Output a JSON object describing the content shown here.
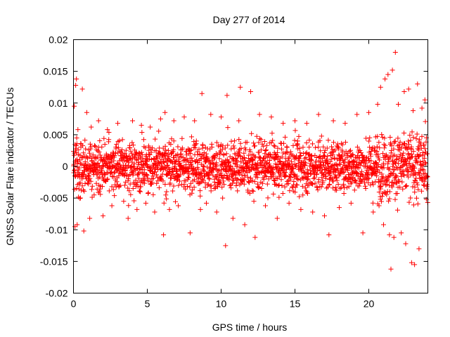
{
  "chart_data": {
    "type": "scatter",
    "title": "Day 277 of 2014",
    "xlabel": "GPS time / hours",
    "ylabel": "GNSS Solar Flare indicator / TECUs",
    "xlim": [
      0,
      24
    ],
    "ylim": [
      -0.02,
      0.02
    ],
    "x_ticks": [
      {
        "value": 0,
        "label": "0"
      },
      {
        "value": 5,
        "label": "5"
      },
      {
        "value": 10,
        "label": "10"
      },
      {
        "value": 15,
        "label": "15"
      },
      {
        "value": 20,
        "label": "20"
      }
    ],
    "y_ticks": [
      {
        "value": -0.02,
        "label": "-0.02"
      },
      {
        "value": -0.015,
        "label": "-0.015"
      },
      {
        "value": -0.01,
        "label": "-0.01"
      },
      {
        "value": -0.005,
        "label": "-0.005"
      },
      {
        "value": 0,
        "label": "0"
      },
      {
        "value": 0.005,
        "label": "0.005"
      },
      {
        "value": 0.01,
        "label": "0.01"
      },
      {
        "value": 0.015,
        "label": "0.015"
      },
      {
        "value": 0.02,
        "label": "0.02"
      }
    ],
    "marker": "plus",
    "color": "#ff0000",
    "grid": false,
    "series": [
      {
        "points": [
          [
            0.05,
            0.0095
          ],
          [
            0.1,
            -0.0095
          ],
          [
            0.15,
            0.0128
          ],
          [
            0.2,
            0.0138
          ],
          [
            0.25,
            -0.0092
          ],
          [
            0.3,
            0.0058
          ],
          [
            0.6,
            0.0122
          ],
          [
            0.7,
            -0.0102
          ],
          [
            0.9,
            0.0085
          ],
          [
            1.1,
            -0.0082
          ],
          [
            1.2,
            0.0062
          ],
          [
            1.4,
            -0.0045
          ],
          [
            1.7,
            0.0072
          ],
          [
            2.0,
            -0.0078
          ],
          [
            2.3,
            0.0058
          ],
          [
            2.6,
            -0.0062
          ],
          [
            3.0,
            0.0068
          ],
          [
            3.4,
            -0.0055
          ],
          [
            3.7,
            -0.0082
          ],
          [
            4.0,
            0.0072
          ],
          [
            4.3,
            -0.0068
          ],
          [
            4.6,
            0.0065
          ],
          [
            4.9,
            -0.0058
          ],
          [
            5.2,
            0.0062
          ],
          [
            5.5,
            -0.0072
          ],
          [
            5.9,
            0.0075
          ],
          [
            6.1,
            -0.0108
          ],
          [
            6.2,
            0.0085
          ],
          [
            6.5,
            -0.0068
          ],
          [
            6.8,
            0.0072
          ],
          [
            7.1,
            -0.0062
          ],
          [
            7.5,
            0.0078
          ],
          [
            7.9,
            -0.0105
          ],
          [
            8.2,
            0.0072
          ],
          [
            8.6,
            -0.0068
          ],
          [
            8.7,
            0.0115
          ],
          [
            9.0,
            -0.0058
          ],
          [
            9.3,
            0.0082
          ],
          [
            9.7,
            -0.0072
          ],
          [
            10.0,
            0.0078
          ],
          [
            10.3,
            -0.0125
          ],
          [
            10.4,
            0.0112
          ],
          [
            10.8,
            -0.0082
          ],
          [
            11.2,
            0.0072
          ],
          [
            11.3,
            0.0125
          ],
          [
            11.6,
            -0.0092
          ],
          [
            12.0,
            0.0118
          ],
          [
            12.3,
            -0.0112
          ],
          [
            12.6,
            0.0082
          ],
          [
            13.0,
            -0.0062
          ],
          [
            13.4,
            0.0078
          ],
          [
            13.8,
            -0.0082
          ],
          [
            14.2,
            0.0068
          ],
          [
            14.6,
            -0.0058
          ],
          [
            15.0,
            0.0072
          ],
          [
            15.4,
            -0.0068
          ],
          [
            15.8,
            0.0068
          ],
          [
            16.2,
            -0.0072
          ],
          [
            16.6,
            0.0082
          ],
          [
            17.0,
            -0.0078
          ],
          [
            17.3,
            -0.0108
          ],
          [
            17.6,
            0.0072
          ],
          [
            18.0,
            -0.0065
          ],
          [
            18.4,
            0.0068
          ],
          [
            18.8,
            -0.0058
          ],
          [
            19.2,
            0.0082
          ],
          [
            19.6,
            -0.0105
          ],
          [
            20.0,
            0.0085
          ],
          [
            20.3,
            -0.0072
          ],
          [
            20.6,
            0.0098
          ],
          [
            20.8,
            0.0125
          ],
          [
            21.0,
            -0.0092
          ],
          [
            21.1,
            0.0138
          ],
          [
            21.3,
            0.0145
          ],
          [
            21.4,
            -0.0108
          ],
          [
            21.5,
            -0.0162
          ],
          [
            21.6,
            0.0152
          ],
          [
            21.7,
            -0.0112
          ],
          [
            21.8,
            0.018
          ],
          [
            22.0,
            0.0098
          ],
          [
            22.2,
            -0.0105
          ],
          [
            22.4,
            0.0118
          ],
          [
            22.5,
            -0.0122
          ],
          [
            22.7,
            0.0122
          ],
          [
            22.9,
            -0.0152
          ],
          [
            23.0,
            0.0088
          ],
          [
            23.1,
            -0.0155
          ],
          [
            23.3,
            0.013
          ],
          [
            23.4,
            -0.013
          ],
          [
            23.6,
            0.0092
          ],
          [
            23.8,
            0.0105
          ],
          [
            23.9,
            -0.0052
          ]
        ]
      }
    ]
  }
}
